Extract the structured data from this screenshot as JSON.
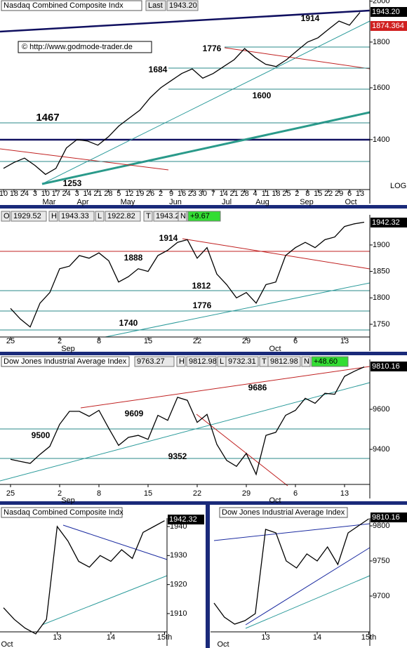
{
  "chart_data": [
    {
      "type": "line",
      "title": "Nasdaq Combined Composite Indx",
      "header": [
        "Last",
        "1943.20"
      ],
      "log": true,
      "price_tags": [
        "1943.20",
        "1874.364"
      ],
      "note": "© http://www.godmode-trader.de",
      "scale_label": "LOG",
      "annotations": [
        "1914",
        "1776",
        "1684",
        "1600",
        "1467",
        "1253"
      ],
      "categories": [
        "10",
        "18",
        "24",
        "3",
        "10",
        "17",
        "24",
        "3",
        "14",
        "21",
        "28",
        "5",
        "12",
        "19",
        "26",
        "2",
        "9",
        "16",
        "23",
        "30",
        "7",
        "14",
        "21",
        "28",
        "4",
        "11",
        "18",
        "25",
        "2",
        "8",
        "15",
        "22",
        "29",
        "6",
        "13"
      ],
      "months": [
        "Mar",
        "Apr",
        "May",
        "Jun",
        "Jul",
        "Aug",
        "Sep",
        "Oct"
      ],
      "values": [
        1300,
        1320,
        1335,
        1310,
        1280,
        1300,
        1370,
        1400,
        1395,
        1380,
        1410,
        1450,
        1480,
        1510,
        1560,
        1600,
        1630,
        1660,
        1680,
        1640,
        1660,
        1690,
        1720,
        1770,
        1730,
        1700,
        1690,
        1720,
        1760,
        1800,
        1820,
        1860,
        1900,
        1880,
        1943
      ],
      "color": "#000000",
      "ylim": [
        1231,
        2006
      ],
      "yticks": [
        1400,
        1600,
        1800,
        2000
      ]
    },
    {
      "type": "line",
      "header": [
        "O",
        "1929.52",
        "H",
        "1943.33",
        "L",
        "1922.82",
        "T",
        "1943.20",
        "N",
        "+9.67"
      ],
      "price_tags": [
        "1942.32"
      ],
      "annotations": [
        "1914",
        "1888",
        "1812",
        "1776",
        "1740"
      ],
      "categories": [
        "25",
        null,
        null,
        null,
        null,
        "2",
        null,
        null,
        null,
        "8",
        null,
        null,
        null,
        null,
        "15",
        null,
        null,
        null,
        null,
        "22",
        null,
        null,
        null,
        null,
        "29",
        null,
        null,
        null,
        null,
        "6",
        null,
        null,
        null,
        null,
        "13",
        null,
        null
      ],
      "months": [
        "Sep",
        "Oct"
      ],
      "values": [
        1780,
        1760,
        1745,
        1790,
        1810,
        1855,
        1860,
        1880,
        1875,
        1885,
        1870,
        1830,
        1840,
        1855,
        1850,
        1880,
        1890,
        1905,
        1910,
        1875,
        1895,
        1845,
        1825,
        1800,
        1810,
        1790,
        1825,
        1830,
        1880,
        1895,
        1905,
        1895,
        1910,
        1915,
        1935,
        1940,
        1943
      ],
      "color": "#000000",
      "ylim": [
        1726,
        1957
      ],
      "yticks": [
        1750,
        1800,
        1850,
        1900
      ]
    },
    {
      "type": "line",
      "title": "Dow Jones Industrial Average Index",
      "header": [
        "9763.27",
        "H",
        "9812.98",
        "L",
        "9732.31",
        "T",
        "9812.98",
        "N",
        "+48.60"
      ],
      "price_tags": [
        "9810.16"
      ],
      "annotations": [
        "9686",
        "9609",
        "9500",
        "9352"
      ],
      "categories": [
        "25",
        null,
        null,
        null,
        null,
        "2",
        null,
        null,
        null,
        "8",
        null,
        null,
        null,
        null,
        "15",
        null,
        null,
        null,
        null,
        "22",
        null,
        null,
        null,
        null,
        "29",
        null,
        null,
        null,
        null,
        "6",
        null,
        null,
        null,
        null,
        "13",
        null,
        null
      ],
      "months": [
        "Sep",
        "Oct"
      ],
      "values": [
        9350,
        9340,
        9330,
        9375,
        9415,
        9525,
        9590,
        9590,
        9565,
        9595,
        9505,
        9420,
        9460,
        9470,
        9450,
        9570,
        9545,
        9660,
        9645,
        9535,
        9575,
        9425,
        9345,
        9315,
        9380,
        9275,
        9470,
        9485,
        9570,
        9595,
        9655,
        9630,
        9680,
        9675,
        9765,
        9790,
        9812
      ],
      "color": "#000000",
      "ylim": [
        9225,
        9849
      ],
      "yticks": [
        9400,
        9600
      ]
    },
    {
      "type": "line",
      "title": "Nasdaq Combined Composite Indx",
      "price_tags": [
        "1942.32"
      ],
      "categories": [
        null,
        null,
        null,
        null,
        null,
        "13",
        null,
        null,
        null,
        null,
        "14",
        null,
        null,
        null,
        null,
        "15th"
      ],
      "months": [
        "Oct"
      ],
      "values": [
        1912,
        1908,
        1905,
        1903,
        1908,
        1940,
        1935,
        1928,
        1926,
        1930,
        1928,
        1932,
        1929,
        1938,
        1940,
        1942
      ],
      "color": "#000000",
      "ylim": [
        1903.7,
        1942.9
      ],
      "yticks": [
        1910,
        1920,
        1930,
        1940
      ]
    },
    {
      "type": "line",
      "title": "Dow Jones Industrial Average Index",
      "price_tags": [
        "9810.16"
      ],
      "categories": [
        null,
        null,
        null,
        null,
        null,
        "13",
        null,
        null,
        null,
        null,
        "14",
        null,
        null,
        null,
        null,
        "15th"
      ],
      "months": [
        "Oct"
      ],
      "values": [
        9690,
        9670,
        9660,
        9665,
        9675,
        9795,
        9790,
        9750,
        9740,
        9760,
        9750,
        9770,
        9745,
        9790,
        9800,
        9810
      ],
      "color": "#000000",
      "ylim": [
        9649,
        9811
      ],
      "yticks": [
        9700,
        9750,
        9800
      ]
    }
  ]
}
